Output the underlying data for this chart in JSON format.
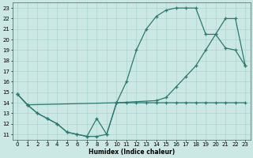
{
  "xlabel": "Humidex (Indice chaleur)",
  "ylabel": "",
  "bg_color": "#cce8e4",
  "grid_color": "#aad4d0",
  "line_color": "#2a7a70",
  "xlim": [
    -0.5,
    23.5
  ],
  "ylim": [
    10.5,
    23.5
  ],
  "xticks": [
    0,
    1,
    2,
    3,
    4,
    5,
    6,
    7,
    8,
    9,
    10,
    11,
    12,
    13,
    14,
    15,
    16,
    17,
    18,
    19,
    20,
    21,
    22,
    23
  ],
  "yticks": [
    11,
    12,
    13,
    14,
    15,
    16,
    17,
    18,
    19,
    20,
    21,
    22,
    23
  ],
  "line1_x": [
    0,
    1,
    2,
    3,
    4,
    5,
    6,
    7,
    8,
    9,
    10,
    11,
    12,
    13,
    14,
    15,
    16,
    17,
    18,
    19,
    20,
    21,
    22,
    23
  ],
  "line1_y": [
    14.8,
    13.8,
    13.0,
    12.5,
    12.0,
    11.2,
    11.0,
    10.8,
    10.8,
    11.0,
    14.0,
    14.0,
    14.0,
    14.0,
    14.0,
    14.0,
    14.0,
    14.0,
    14.0,
    14.0,
    14.0,
    14.0,
    14.0,
    14.0
  ],
  "line2_x": [
    0,
    1,
    2,
    3,
    4,
    5,
    6,
    7,
    8,
    9,
    10,
    11,
    12,
    13,
    14,
    15,
    16,
    17,
    18,
    19,
    20,
    21,
    22,
    23
  ],
  "line2_y": [
    14.8,
    13.8,
    13.0,
    12.5,
    12.0,
    11.2,
    11.0,
    10.8,
    12.5,
    11.0,
    14.0,
    16.0,
    19.0,
    21.0,
    22.2,
    22.8,
    23.0,
    23.0,
    23.0,
    20.5,
    20.5,
    19.2,
    19.0,
    17.5
  ],
  "line3_x": [
    0,
    1,
    10,
    14,
    15,
    16,
    17,
    18,
    19,
    20,
    21,
    22,
    23
  ],
  "line3_y": [
    14.8,
    13.8,
    14.0,
    14.2,
    14.5,
    15.5,
    16.5,
    17.5,
    19.0,
    20.5,
    22.0,
    22.0,
    17.5
  ]
}
